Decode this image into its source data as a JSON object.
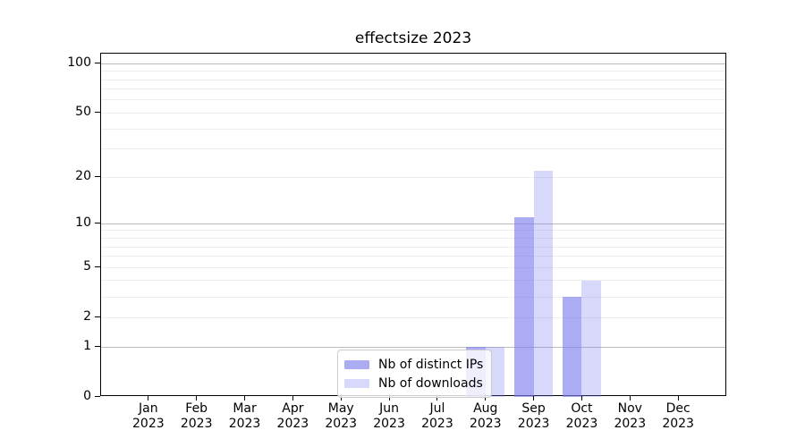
{
  "chart_data": {
    "type": "bar",
    "title": "effectsize 2023",
    "categories": [
      "Jan 2023",
      "Feb 2023",
      "Mar 2023",
      "Apr 2023",
      "May 2023",
      "Jun 2023",
      "Jul 2023",
      "Aug 2023",
      "Sep 2023",
      "Oct 2023",
      "Nov 2023",
      "Dec 2023"
    ],
    "series": [
      {
        "name": "Nb of distinct IPs",
        "color": "rgba(127,127,240,0.65)",
        "values": [
          0,
          0,
          0,
          0,
          0,
          0,
          0,
          1,
          11,
          3,
          0,
          0
        ]
      },
      {
        "name": "Nb of downloads",
        "color": "rgba(127,127,240,0.30)",
        "values": [
          0,
          0,
          0,
          0,
          0,
          0,
          0,
          1,
          22,
          4,
          0,
          0
        ]
      }
    ],
    "xlabel": "",
    "ylabel": "",
    "yscale": "log1p",
    "ylim": [
      0,
      115
    ],
    "y_ticks": [
      0,
      1,
      2,
      5,
      10,
      20,
      50,
      100
    ],
    "gridlines_major": [
      1,
      10,
      100
    ],
    "gridlines_minor": [
      2,
      3,
      4,
      5,
      6,
      7,
      8,
      9,
      20,
      30,
      40,
      50,
      60,
      70,
      80,
      90
    ],
    "grid_on": true,
    "legend_position": "lower center"
  },
  "colors": {
    "background": "#ffffff",
    "axis": "#000000",
    "grid_major": "#bcbcbc",
    "grid_minor": "#ededed",
    "legend_border": "#cccccc"
  }
}
